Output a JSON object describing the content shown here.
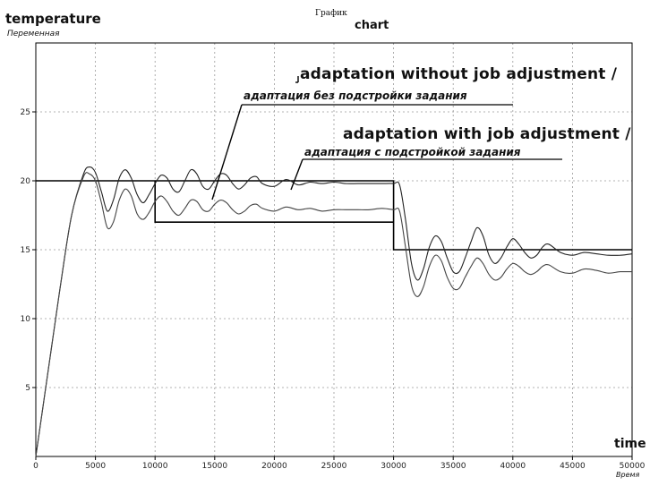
{
  "chart_data": {
    "type": "line",
    "title": "График",
    "title_en": "chart",
    "ylabel": "Переменная",
    "ylabel_en": "temperature",
    "xlabel": "Время",
    "xlabel_en": "time",
    "xlim": [
      0,
      50000
    ],
    "ylim": [
      0,
      30
    ],
    "x_ticks": [
      0,
      5000,
      10000,
      15000,
      20000,
      25000,
      30000,
      35000,
      40000,
      45000,
      50000
    ],
    "x_tick_labels": [
      "0",
      "5000",
      "10000",
      "15000",
      "20000",
      "25000",
      "30000",
      "35000",
      "40000",
      "45000",
      "50000"
    ],
    "y_ticks": [
      5,
      10,
      15,
      20,
      25
    ],
    "y_tick_labels": [
      "5",
      "10",
      "15",
      "20",
      "25"
    ],
    "grid": true,
    "annotations": [
      {
        "text": "adaptation without job adjustment /",
        "text_ru": "адаптация без подстройки задания",
        "points_to_x": 15000
      },
      {
        "text": "adaptation with job adjustment /",
        "text_ru": "адаптация с подстройкой задания",
        "points_to_x": 21500
      }
    ],
    "series": [
      {
        "role": "setpoint without adjustment",
        "color": "#000000",
        "x": [
          0,
          30000,
          30000,
          50000
        ],
        "y": [
          20,
          20,
          15,
          15
        ]
      },
      {
        "role": "setpoint with adjustment",
        "color": "#000000",
        "x": [
          10000,
          10000,
          30000
        ],
        "y": [
          20,
          17,
          17
        ]
      },
      {
        "role": "adaptation without job adjustment",
        "color": "#222222",
        "x": [
          0,
          1000,
          2000,
          3000,
          4000,
          4500,
          5000,
          5500,
          6000,
          6500,
          7000,
          7500,
          8000,
          8500,
          9000,
          9500,
          10000,
          10500,
          11000,
          11500,
          12000,
          12500,
          13000,
          13500,
          14000,
          14500,
          15000,
          15500,
          16000,
          16500,
          17000,
          17500,
          18000,
          18500,
          19000,
          20000,
          21000,
          22000,
          23000,
          24000,
          25000,
          26000,
          27000,
          28000,
          29000,
          30000,
          30500,
          31000,
          31500,
          32000,
          32500,
          33000,
          33500,
          34000,
          34500,
          35000,
          35500,
          36000,
          36500,
          37000,
          37500,
          38000,
          38500,
          39000,
          39500,
          40000,
          40500,
          41000,
          41500,
          42000,
          42500,
          43000,
          44000,
          45000,
          46000,
          47000,
          48000,
          49000,
          50000
        ],
        "y": [
          0,
          6,
          12,
          17.5,
          20.5,
          21.0,
          20.6,
          19.2,
          17.8,
          18.6,
          20.2,
          20.8,
          20.2,
          19.0,
          18.4,
          19.0,
          19.8,
          20.4,
          20.2,
          19.4,
          19.2,
          20.0,
          20.8,
          20.5,
          19.6,
          19.4,
          20.0,
          20.5,
          20.4,
          19.8,
          19.4,
          19.7,
          20.2,
          20.3,
          19.8,
          19.6,
          20.1,
          19.7,
          19.9,
          19.8,
          19.9,
          19.8,
          19.8,
          19.8,
          19.8,
          19.8,
          19.7,
          17.2,
          14.0,
          12.8,
          13.6,
          15.2,
          16.0,
          15.6,
          14.4,
          13.4,
          13.4,
          14.4,
          15.6,
          16.6,
          16.0,
          14.6,
          14.0,
          14.4,
          15.2,
          15.8,
          15.4,
          14.8,
          14.4,
          14.6,
          15.2,
          15.4,
          14.8,
          14.6,
          14.8,
          14.7,
          14.6,
          14.6,
          14.7
        ]
      },
      {
        "role": "adaptation with job adjustment",
        "color": "#444444",
        "x": [
          0,
          1000,
          2000,
          3000,
          4000,
          4500,
          5000,
          5500,
          6000,
          6500,
          7000,
          7500,
          8000,
          8500,
          9000,
          9500,
          10000,
          10500,
          11000,
          11500,
          12000,
          12500,
          13000,
          13500,
          14000,
          14500,
          15000,
          15500,
          16000,
          16500,
          17000,
          17500,
          18000,
          18500,
          19000,
          20000,
          21000,
          22000,
          23000,
          24000,
          25000,
          26000,
          27000,
          28000,
          29000,
          30000,
          30500,
          31000,
          31500,
          32000,
          32500,
          33000,
          33500,
          34000,
          34500,
          35000,
          35500,
          36000,
          36500,
          37000,
          37500,
          38000,
          38500,
          39000,
          39500,
          40000,
          40500,
          41000,
          41500,
          42000,
          42500,
          43000,
          44000,
          45000,
          46000,
          47000,
          48000,
          49000,
          50000
        ],
        "y": [
          0,
          6,
          12,
          17.5,
          20.3,
          20.5,
          20.0,
          18.4,
          16.6,
          17.0,
          18.6,
          19.4,
          18.9,
          17.6,
          17.2,
          17.7,
          18.5,
          18.9,
          18.5,
          17.8,
          17.5,
          18.0,
          18.6,
          18.5,
          17.9,
          17.8,
          18.3,
          18.6,
          18.4,
          17.9,
          17.6,
          17.8,
          18.2,
          18.3,
          18.0,
          17.8,
          18.1,
          17.9,
          18.0,
          17.8,
          17.9,
          17.9,
          17.9,
          17.9,
          18.0,
          17.9,
          17.8,
          15.2,
          12.4,
          11.6,
          12.3,
          13.8,
          14.6,
          14.2,
          13.0,
          12.2,
          12.2,
          13.0,
          13.8,
          14.4,
          14.0,
          13.2,
          12.8,
          13.0,
          13.6,
          14.0,
          13.8,
          13.4,
          13.2,
          13.4,
          13.8,
          13.9,
          13.4,
          13.3,
          13.6,
          13.5,
          13.3,
          13.4,
          13.4
        ]
      }
    ]
  }
}
